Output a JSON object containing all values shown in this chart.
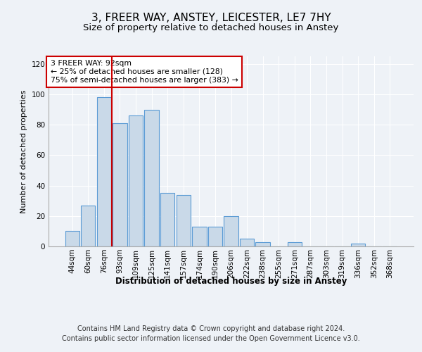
{
  "title": "3, FREER WAY, ANSTEY, LEICESTER, LE7 7HY",
  "subtitle": "Size of property relative to detached houses in Anstey",
  "xlabel": "Distribution of detached houses by size in Anstey",
  "ylabel": "Number of detached properties",
  "bar_labels": [
    "44sqm",
    "60sqm",
    "76sqm",
    "93sqm",
    "109sqm",
    "125sqm",
    "141sqm",
    "157sqm",
    "174sqm",
    "190sqm",
    "206sqm",
    "222sqm",
    "238sqm",
    "255sqm",
    "271sqm",
    "287sqm",
    "303sqm",
    "319sqm",
    "336sqm",
    "352sqm",
    "368sqm"
  ],
  "bar_values": [
    10,
    27,
    98,
    81,
    86,
    90,
    35,
    34,
    13,
    13,
    20,
    5,
    3,
    0,
    3,
    0,
    0,
    0,
    2,
    0,
    0
  ],
  "bar_color": "#c9d9e8",
  "bar_edge_color": "#5b9bd5",
  "vline_x": 2.5,
  "vline_color": "#cc0000",
  "annotation_text": "3 FREER WAY: 92sqm\n← 25% of detached houses are smaller (128)\n75% of semi-detached houses are larger (383) →",
  "annotation_box_color": "#ffffff",
  "annotation_box_edge": "#cc0000",
  "ylim": [
    0,
    125
  ],
  "yticks": [
    0,
    20,
    40,
    60,
    80,
    100,
    120
  ],
  "footer_line1": "Contains HM Land Registry data © Crown copyright and database right 2024.",
  "footer_line2": "Contains public sector information licensed under the Open Government Licence v3.0.",
  "bg_color": "#eef2f7",
  "plot_bg_color": "#eef2f7",
  "title_fontsize": 11,
  "subtitle_fontsize": 9.5,
  "axis_label_fontsize": 8.5,
  "tick_fontsize": 7.5,
  "footer_fontsize": 7,
  "ylabel_fontsize": 8
}
